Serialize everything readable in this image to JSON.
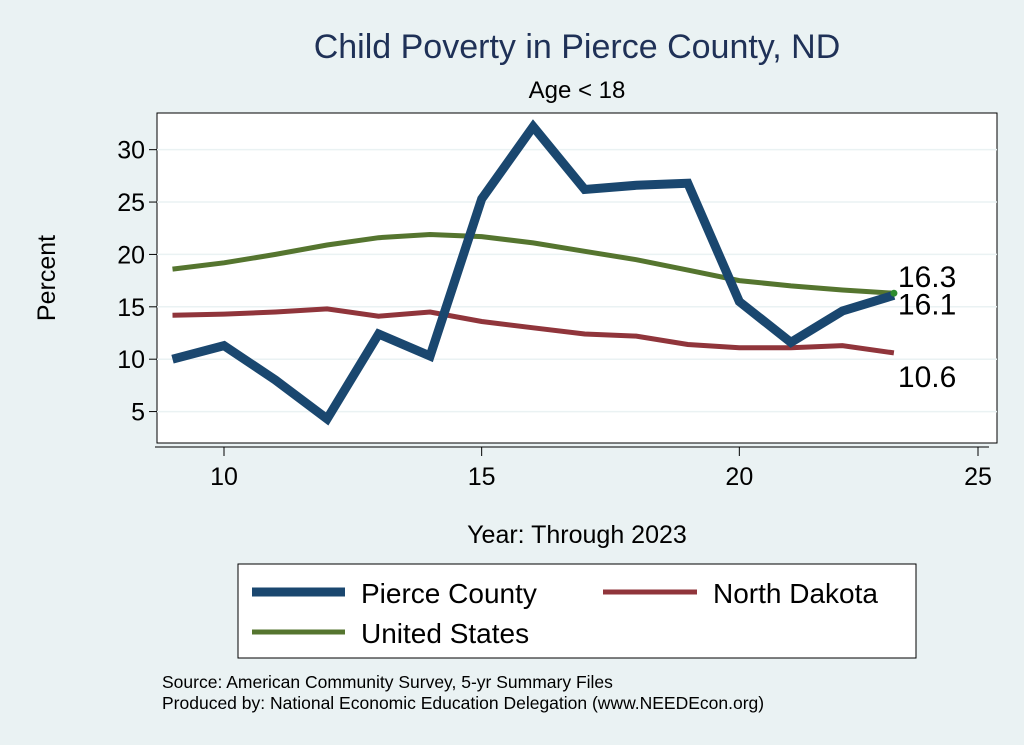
{
  "chart_data": {
    "type": "line",
    "title": "Child Poverty in Pierce County, ND",
    "subtitle": "Age < 18",
    "xlabel": "Year: Through 2023",
    "ylabel": "Percent",
    "xlim": [
      8.7,
      25
    ],
    "ylim": [
      2.0,
      33.5
    ],
    "x_ticks": [
      10,
      15,
      20,
      25
    ],
    "y_ticks": [
      5,
      10,
      15,
      20,
      25,
      30
    ],
    "grid": true,
    "legend_position": "bottom",
    "x": [
      9,
      10,
      11,
      12,
      13,
      14,
      15,
      16,
      17,
      18,
      19,
      20,
      21,
      22,
      23
    ],
    "series": [
      {
        "name": "Pierce County",
        "color": "#1a476f",
        "values": [
          10.0,
          11.3,
          8.0,
          4.3,
          12.4,
          10.3,
          25.3,
          32.2,
          26.2,
          26.6,
          26.8,
          15.5,
          11.6,
          14.6,
          16.1
        ],
        "end_label": "16.1"
      },
      {
        "name": "North Dakota",
        "color": "#90353b",
        "values": [
          14.2,
          14.3,
          14.5,
          14.8,
          14.1,
          14.5,
          13.6,
          13.0,
          12.4,
          12.2,
          11.4,
          11.1,
          11.1,
          11.3,
          10.6
        ],
        "end_label": "10.6"
      },
      {
        "name": "United States",
        "color": "#55752f",
        "values": [
          18.6,
          19.2,
          20.0,
          20.9,
          21.6,
          21.9,
          21.7,
          21.1,
          20.3,
          19.5,
          18.5,
          17.5,
          17.0,
          16.6,
          16.3
        ],
        "end_label": "16.3"
      }
    ]
  },
  "footer": {
    "source": "Source: American Community Survey, 5-yr Summary Files",
    "produced": "Produced by: National Economic Education Delegation (www.NEEDEcon.org)"
  }
}
